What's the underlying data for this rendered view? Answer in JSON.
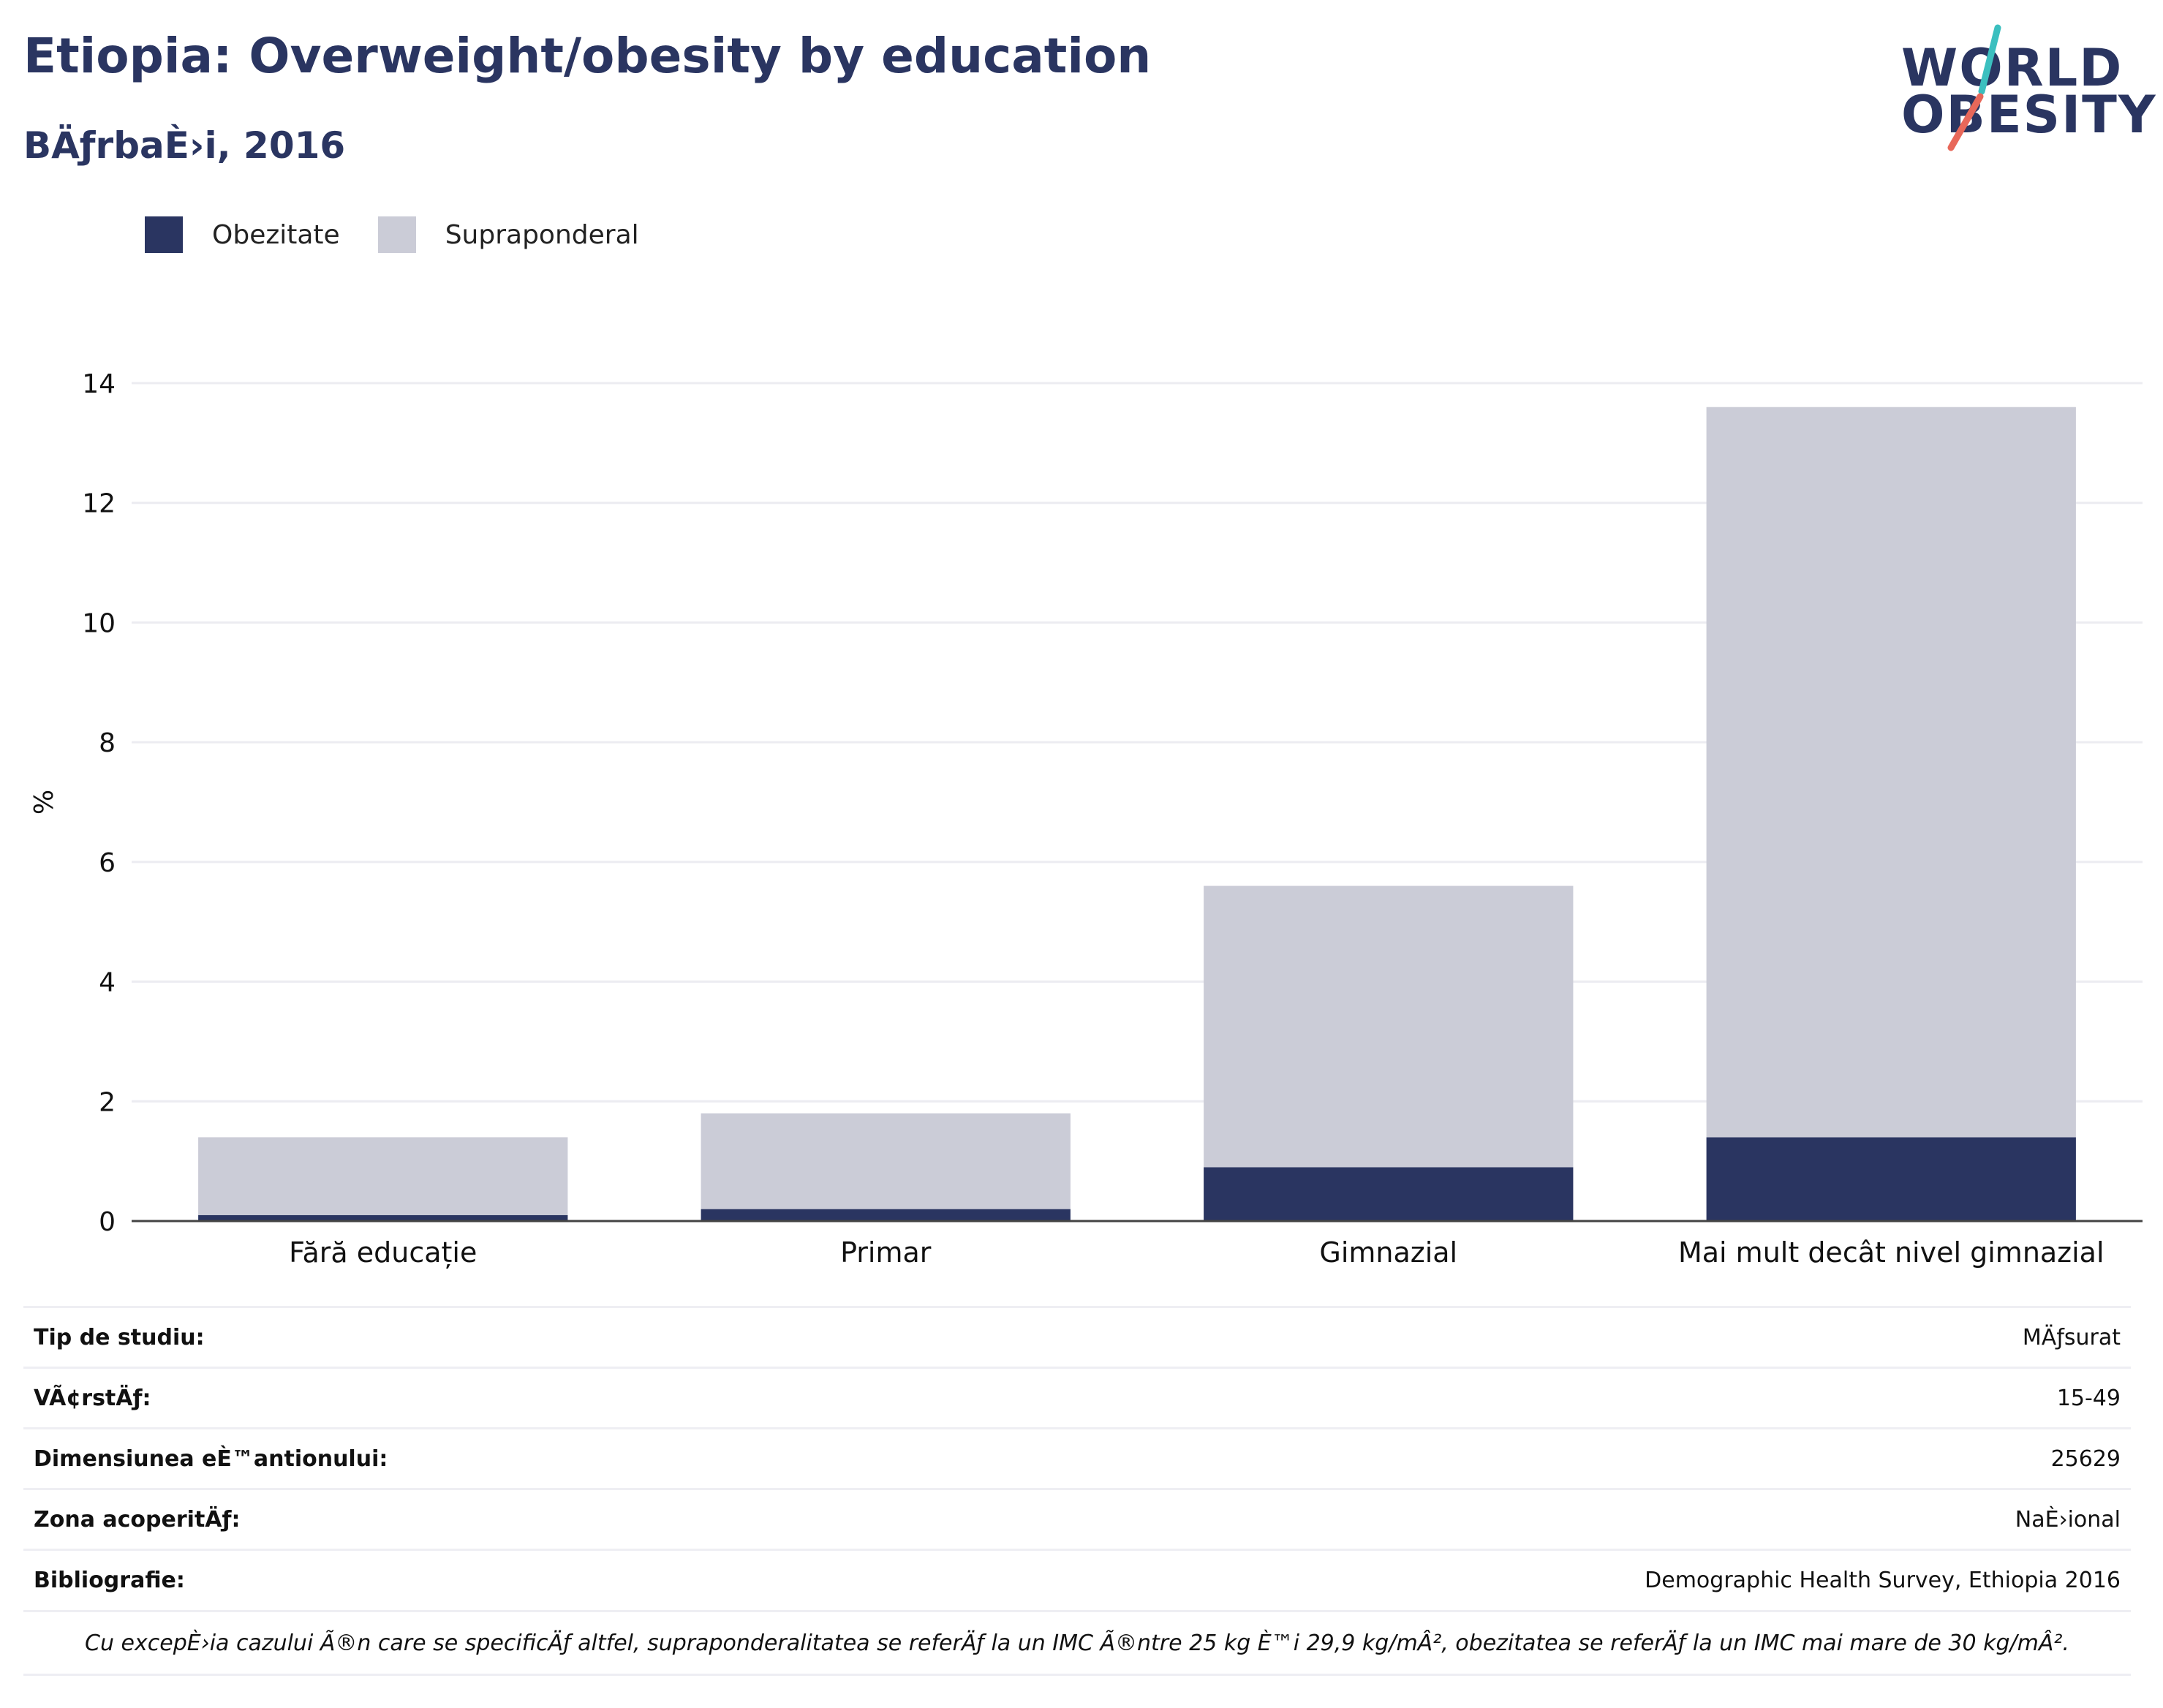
{
  "title": "Etiopia: Overweight/obesity by education",
  "subtitle": "BÄƒrbaÈ›i, 2016",
  "logo": {
    "line1": "WORLD",
    "line2": "OBESITY",
    "accent_teal": "#3bbfbf",
    "accent_red": "#e8685a"
  },
  "colors": {
    "obesity": "#2a3561",
    "overweight": "#cbccd7",
    "text_primary": "#2a3561"
  },
  "legend": [
    {
      "label": "Obezitate",
      "color": "#2a3561"
    },
    {
      "label": "Supraponderal",
      "color": "#cbccd7"
    }
  ],
  "chart_data": {
    "type": "bar",
    "stacked": true,
    "categories": [
      "Fără educație",
      "Primar",
      "Gimnazial",
      "Mai mult decât nivel gimnazial"
    ],
    "series": [
      {
        "name": "Obezitate",
        "values": [
          0.1,
          0.2,
          0.9,
          1.4
        ],
        "color": "#2a3561"
      },
      {
        "name": "Supraponderal",
        "values": [
          1.3,
          1.6,
          4.7,
          12.2
        ],
        "color": "#cbccd7"
      }
    ],
    "ylabel": "%",
    "ylim": [
      0,
      14
    ],
    "yticks": [
      0,
      2,
      4,
      6,
      8,
      10,
      12,
      14
    ],
    "grid": true,
    "legend_position": "top-left"
  },
  "info": [
    {
      "key": "Tip de studiu:",
      "value": "MÄƒsurat"
    },
    {
      "key": "VÃ¢rstÄƒ:",
      "value": "15-49"
    },
    {
      "key": "Dimensiunea eÈ™antionului:",
      "value": "25629"
    },
    {
      "key": "Zona acoperitÄƒ:",
      "value": "NaÈ›ional"
    },
    {
      "key": "Bibliografie:",
      "value": "Demographic Health Survey, Ethiopia 2016"
    }
  ],
  "note": "Cu excepÈ›ia cazului Ã®n care se specificÄƒ altfel, supraponderalitatea se referÄƒ la un IMC Ã®ntre 25 kg È™i 29,9 kg/mÂ², obezitatea se referÄƒ la un IMC mai mare de 30 kg/mÂ²."
}
